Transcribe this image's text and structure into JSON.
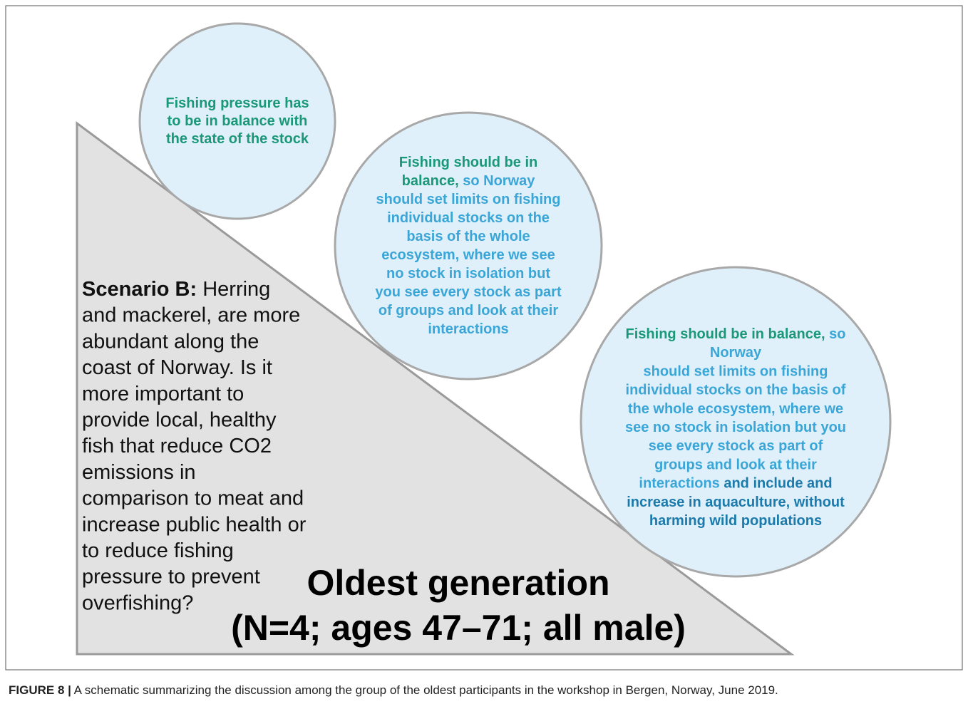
{
  "circles": [
    {
      "lines": [
        [
          {
            "text": "Fishing pressure has",
            "color": "#1a9878"
          }
        ],
        [
          {
            "text": "to be in balance with",
            "color": "#1a9878"
          }
        ],
        [
          {
            "text": "the state of the stock",
            "color": "#1a9878"
          }
        ]
      ]
    },
    {
      "lines": [
        [
          {
            "text": "Fishing should be in",
            "color": "#1a9878"
          }
        ],
        [
          {
            "text": "balance,",
            "color": "#1a9878"
          },
          {
            "text": " so Norway",
            "color": "#3aa6d8"
          }
        ],
        [
          {
            "text": "should set limits on fishing",
            "color": "#3aa6d8"
          }
        ],
        [
          {
            "text": "individual stocks on the",
            "color": "#3aa6d8"
          }
        ],
        [
          {
            "text": "basis of the whole",
            "color": "#3aa6d8"
          }
        ],
        [
          {
            "text": "ecosystem, where we see",
            "color": "#3aa6d8"
          }
        ],
        [
          {
            "text": "no stock in isolation but",
            "color": "#3aa6d8"
          }
        ],
        [
          {
            "text": "you see every stock as part",
            "color": "#3aa6d8"
          }
        ],
        [
          {
            "text": "of groups and look at their",
            "color": "#3aa6d8"
          }
        ],
        [
          {
            "text": "interactions",
            "color": "#3aa6d8"
          }
        ]
      ]
    },
    {
      "lines": [
        [
          {
            "text": "Fishing should be in balance,",
            "color": "#1a9878"
          },
          {
            "text": " so",
            "color": "#3aa6d8"
          }
        ],
        [
          {
            "text": "Norway",
            "color": "#3aa6d8"
          }
        ],
        [
          {
            "text": "should set limits on fishing",
            "color": "#3aa6d8"
          }
        ],
        [
          {
            "text": "individual stocks on the basis of",
            "color": "#3aa6d8"
          }
        ],
        [
          {
            "text": "the whole ecosystem, where we",
            "color": "#3aa6d8"
          }
        ],
        [
          {
            "text": "see no stock in isolation but you",
            "color": "#3aa6d8"
          }
        ],
        [
          {
            "text": "see every stock as part of",
            "color": "#3aa6d8"
          }
        ],
        [
          {
            "text": "groups and look at their",
            "color": "#3aa6d8"
          }
        ],
        [
          {
            "text": "interactions",
            "color": "#3aa6d8"
          },
          {
            "text": " and include and",
            "color": "#1b7aab"
          }
        ],
        [
          {
            "text": "increase in aquaculture, without",
            "color": "#1b7aab"
          }
        ],
        [
          {
            "text": "harming wild populations",
            "color": "#1b7aab"
          }
        ]
      ]
    }
  ],
  "scenario": {
    "lines": [
      [
        {
          "text": "Scenario B:",
          "bold": true
        },
        {
          "text": " Herring",
          "bold": false
        }
      ],
      [
        {
          "text": "and mackerel, are more",
          "bold": false
        }
      ],
      [
        {
          "text": "abundant along the",
          "bold": false
        }
      ],
      [
        {
          "text": "coast of Norway. Is it",
          "bold": false
        }
      ],
      [
        {
          "text": "more important to",
          "bold": false
        }
      ],
      [
        {
          "text": "provide local, healthy",
          "bold": false
        }
      ],
      [
        {
          "text": "fish that reduce CO2",
          "bold": false
        }
      ],
      [
        {
          "text": "emissions in",
          "bold": false
        }
      ],
      [
        {
          "text": "comparison to meat and",
          "bold": false
        }
      ],
      [
        {
          "text": "increase public health or",
          "bold": false
        }
      ],
      [
        {
          "text": "to reduce fishing",
          "bold": false
        }
      ],
      [
        {
          "text": "pressure to prevent",
          "bold": false
        }
      ],
      [
        {
          "text": "overfishing?",
          "bold": false
        }
      ]
    ]
  },
  "group": {
    "title": "Oldest generation",
    "subtitle": "(N=4; ages 47–71; all male)"
  },
  "caption": {
    "label": "FIGURE 8 |",
    "text": " A schematic summarizing the discussion among the group of the oldest participants in the workshop in Bergen, Norway, June 2019."
  }
}
